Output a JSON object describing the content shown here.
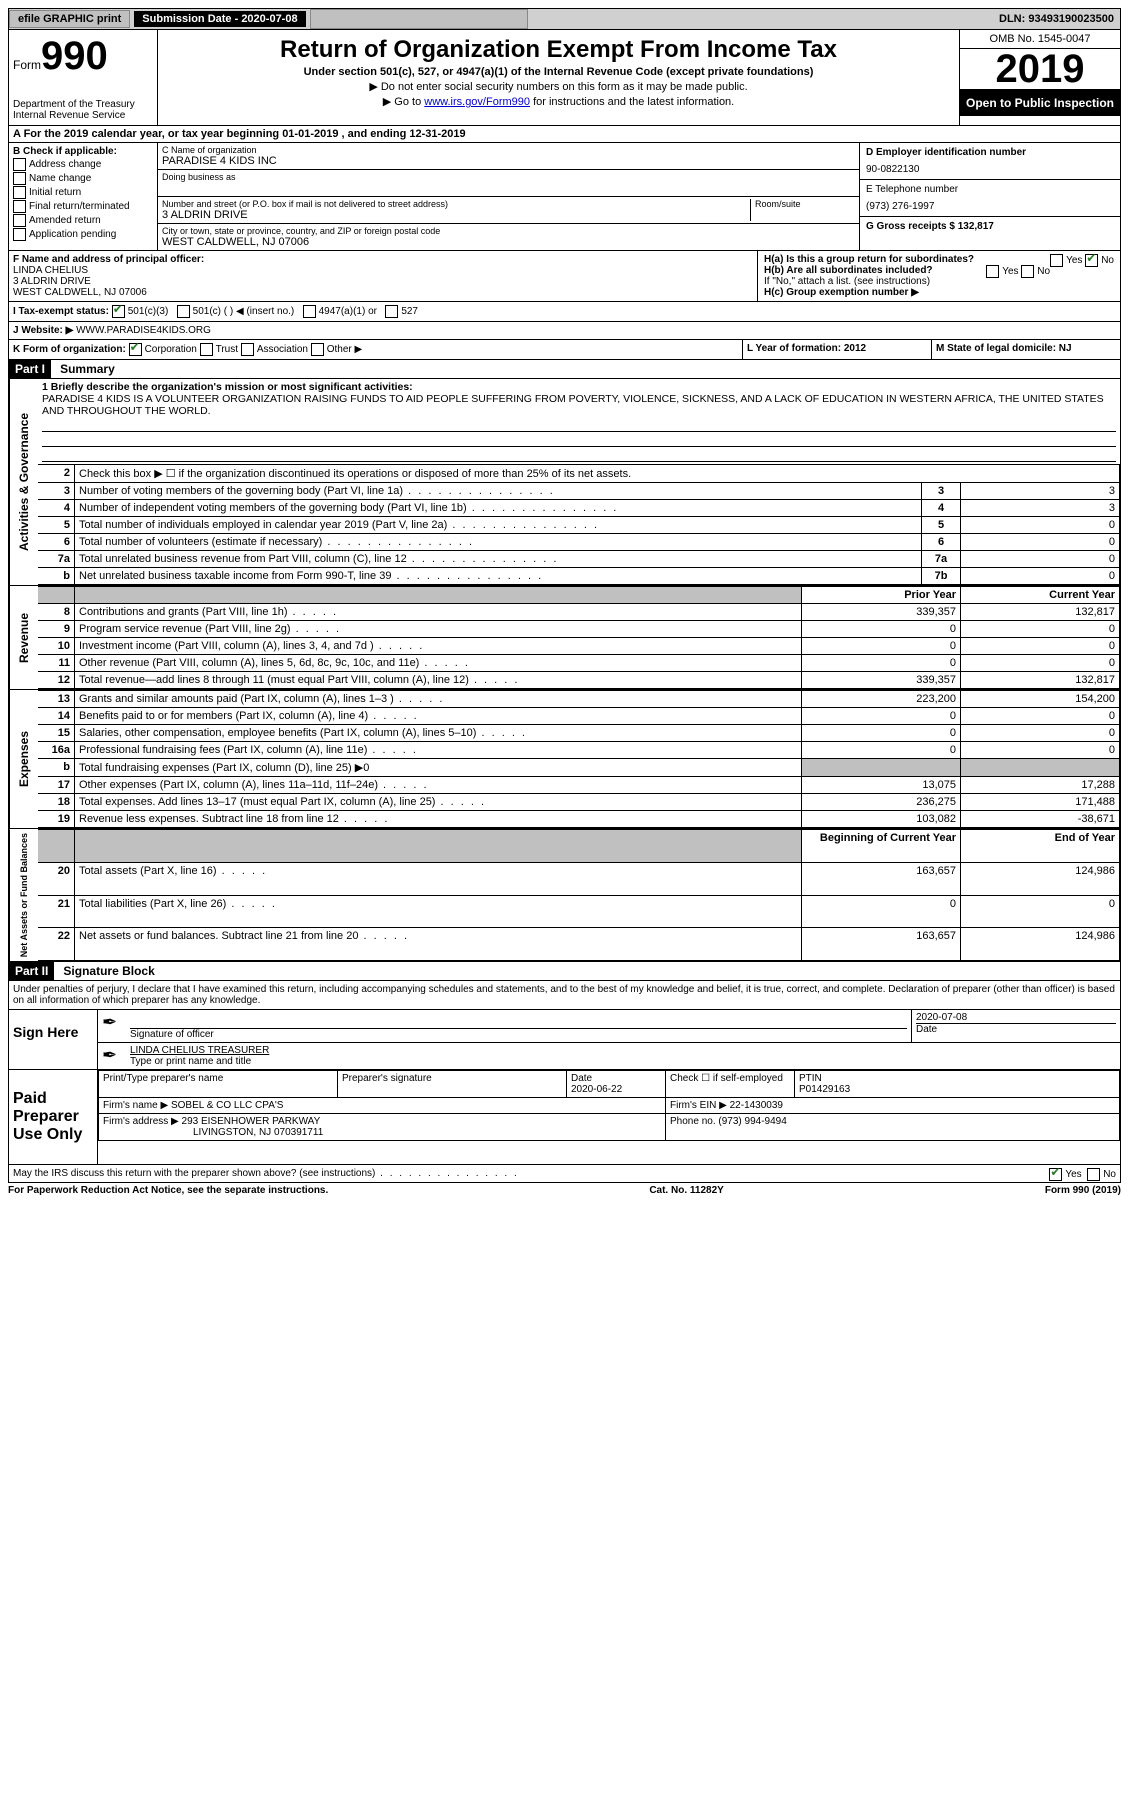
{
  "topbar": {
    "efile": "efile GRAPHIC print",
    "submission_label": "Submission Date - 2020-07-08",
    "dln": "DLN: 93493190023500"
  },
  "header": {
    "form_label": "Form",
    "form_number": "990",
    "dept": "Department of the Treasury\nInternal Revenue Service",
    "title": "Return of Organization Exempt From Income Tax",
    "subtitle": "Under section 501(c), 527, or 4947(a)(1) of the Internal Revenue Code (except private foundations)",
    "note1": "▶ Do not enter social security numbers on this form as it may be made public.",
    "note2_pre": "▶ Go to ",
    "note2_link": "www.irs.gov/Form990",
    "note2_post": " for instructions and the latest information.",
    "omb": "OMB No. 1545-0047",
    "year": "2019",
    "open": "Open to Public Inspection"
  },
  "row_a": "A For the 2019 calendar year, or tax year beginning 01-01-2019   , and ending 12-31-2019",
  "col_b": {
    "label": "B Check if applicable:",
    "items": [
      "Address change",
      "Name change",
      "Initial return",
      "Final return/terminated",
      "Amended return",
      "Application pending"
    ]
  },
  "col_c": {
    "name_label": "C Name of organization",
    "name": "PARADISE 4 KIDS INC",
    "dba_label": "Doing business as",
    "addr_label": "Number and street (or P.O. box if mail is not delivered to street address)",
    "room_label": "Room/suite",
    "addr": "3 ALDRIN DRIVE",
    "city_label": "City or town, state or province, country, and ZIP or foreign postal code",
    "city": "WEST CALDWELL, NJ  07006"
  },
  "col_d": {
    "ein_label": "D Employer identification number",
    "ein": "90-0822130",
    "phone_label": "E Telephone number",
    "phone": "(973) 276-1997",
    "gross_label": "G Gross receipts $ 132,817"
  },
  "section_f": {
    "label": "F  Name and address of principal officer:",
    "name": "LINDA CHELIUS",
    "addr1": "3 ALDRIN DRIVE",
    "addr2": "WEST CALDWELL, NJ  07006"
  },
  "section_h": {
    "ha": "H(a)  Is this a group return for subordinates?",
    "hb": "H(b)  Are all subordinates included?",
    "hb_note": "If \"No,\" attach a list. (see instructions)",
    "hc": "H(c)  Group exemption number ▶",
    "yes": "Yes",
    "no": "No"
  },
  "row_i": {
    "label": "I   Tax-exempt status:",
    "o1": "501(c)(3)",
    "o2": "501(c) (  ) ◀ (insert no.)",
    "o3": "4947(a)(1) or",
    "o4": "527"
  },
  "row_j": {
    "label": "J   Website: ▶",
    "value": "WWW.PARADISE4KIDS.ORG"
  },
  "row_k": {
    "label": "K Form of organization:",
    "o1": "Corporation",
    "o2": "Trust",
    "o3": "Association",
    "o4": "Other ▶",
    "l_label": "L Year of formation: 2012",
    "m_label": "M State of legal domicile: NJ"
  },
  "part1": {
    "header": "Part I",
    "title": "Summary"
  },
  "mission": {
    "q1": "1  Briefly describe the organization's mission or most significant activities:",
    "text": "PARADISE 4 KIDS IS A VOLUNTEER ORGANIZATION RAISING FUNDS TO AID PEOPLE SUFFERING FROM POVERTY, VIOLENCE, SICKNESS, AND A LACK OF EDUCATION IN WESTERN AFRICA, THE UNITED STATES AND THROUGHOUT THE WORLD."
  },
  "governance_rows": [
    {
      "n": "2",
      "d": "Check this box ▶ ☐  if the organization discontinued its operations or disposed of more than 25% of its net assets.",
      "box": "",
      "v": ""
    },
    {
      "n": "3",
      "d": "Number of voting members of the governing body (Part VI, line 1a)",
      "box": "3",
      "v": "3"
    },
    {
      "n": "4",
      "d": "Number of independent voting members of the governing body (Part VI, line 1b)",
      "box": "4",
      "v": "3"
    },
    {
      "n": "5",
      "d": "Total number of individuals employed in calendar year 2019 (Part V, line 2a)",
      "box": "5",
      "v": "0"
    },
    {
      "n": "6",
      "d": "Total number of volunteers (estimate if necessary)",
      "box": "6",
      "v": "0"
    },
    {
      "n": "7a",
      "d": "Total unrelated business revenue from Part VIII, column (C), line 12",
      "box": "7a",
      "v": "0"
    },
    {
      "n": "b",
      "d": "Net unrelated business taxable income from Form 990-T, line 39",
      "box": "7b",
      "v": "0"
    }
  ],
  "rev_header": {
    "prior": "Prior Year",
    "current": "Current Year"
  },
  "revenue_rows": [
    {
      "n": "8",
      "d": "Contributions and grants (Part VIII, line 1h)",
      "p": "339,357",
      "c": "132,817"
    },
    {
      "n": "9",
      "d": "Program service revenue (Part VIII, line 2g)",
      "p": "0",
      "c": "0"
    },
    {
      "n": "10",
      "d": "Investment income (Part VIII, column (A), lines 3, 4, and 7d )",
      "p": "0",
      "c": "0"
    },
    {
      "n": "11",
      "d": "Other revenue (Part VIII, column (A), lines 5, 6d, 8c, 9c, 10c, and 11e)",
      "p": "0",
      "c": "0"
    },
    {
      "n": "12",
      "d": "Total revenue—add lines 8 through 11 (must equal Part VIII, column (A), line 12)",
      "p": "339,357",
      "c": "132,817"
    }
  ],
  "expense_rows": [
    {
      "n": "13",
      "d": "Grants and similar amounts paid (Part IX, column (A), lines 1–3 )",
      "p": "223,200",
      "c": "154,200"
    },
    {
      "n": "14",
      "d": "Benefits paid to or for members (Part IX, column (A), line 4)",
      "p": "0",
      "c": "0"
    },
    {
      "n": "15",
      "d": "Salaries, other compensation, employee benefits (Part IX, column (A), lines 5–10)",
      "p": "0",
      "c": "0"
    },
    {
      "n": "16a",
      "d": "Professional fundraising fees (Part IX, column (A), line 11e)",
      "p": "0",
      "c": "0"
    },
    {
      "n": "b",
      "d": "Total fundraising expenses (Part IX, column (D), line 25) ▶0",
      "p": "",
      "c": "",
      "shade": true
    },
    {
      "n": "17",
      "d": "Other expenses (Part IX, column (A), lines 11a–11d, 11f–24e)",
      "p": "13,075",
      "c": "17,288"
    },
    {
      "n": "18",
      "d": "Total expenses. Add lines 13–17 (must equal Part IX, column (A), line 25)",
      "p": "236,275",
      "c": "171,488"
    },
    {
      "n": "19",
      "d": "Revenue less expenses. Subtract line 18 from line 12",
      "p": "103,082",
      "c": "-38,671"
    }
  ],
  "na_header": {
    "prior": "Beginning of Current Year",
    "current": "End of Year"
  },
  "na_rows": [
    {
      "n": "20",
      "d": "Total assets (Part X, line 16)",
      "p": "163,657",
      "c": "124,986"
    },
    {
      "n": "21",
      "d": "Total liabilities (Part X, line 26)",
      "p": "0",
      "c": "0"
    },
    {
      "n": "22",
      "d": "Net assets or fund balances. Subtract line 21 from line 20",
      "p": "163,657",
      "c": "124,986"
    }
  ],
  "part2": {
    "header": "Part II",
    "title": "Signature Block",
    "decl": "Under penalties of perjury, I declare that I have examined this return, including accompanying schedules and statements, and to the best of my knowledge and belief, it is true, correct, and complete. Declaration of preparer (other than officer) is based on all information of which preparer has any knowledge."
  },
  "sign": {
    "left": "Sign Here",
    "sig_label": "Signature of officer",
    "date_label": "Date",
    "date": "2020-07-08",
    "name": "LINDA CHELIUS  TREASURER",
    "name_label": "Type or print name and title"
  },
  "prep": {
    "left": "Paid Preparer Use Only",
    "h1": "Print/Type preparer's name",
    "h2": "Preparer's signature",
    "h3": "Date",
    "date": "2020-06-22",
    "h4": "Check ☐  if self-employed",
    "h5_label": "PTIN",
    "h5": "P01429163",
    "firm_label": "Firm's name    ▶",
    "firm": "SOBEL & CO LLC CPA'S",
    "ein_label": "Firm's EIN ▶",
    "ein": "22-1430039",
    "addr_label": "Firm's address ▶",
    "addr1": "293 EISENHOWER PARKWAY",
    "addr2": "LIVINGSTON, NJ  070391711",
    "phone_label": "Phone no.",
    "phone": "(973) 994-9494"
  },
  "discuss": {
    "q": "May the IRS discuss this return with the preparer shown above? (see instructions)",
    "yes": "Yes",
    "no": "No"
  },
  "footer": {
    "left": "For Paperwork Reduction Act Notice, see the separate instructions.",
    "mid": "Cat. No. 11282Y",
    "right": "Form 990 (2019)"
  },
  "side_labels": {
    "gov": "Activities & Governance",
    "rev": "Revenue",
    "exp": "Expenses",
    "na": "Net Assets or Fund Balances"
  }
}
